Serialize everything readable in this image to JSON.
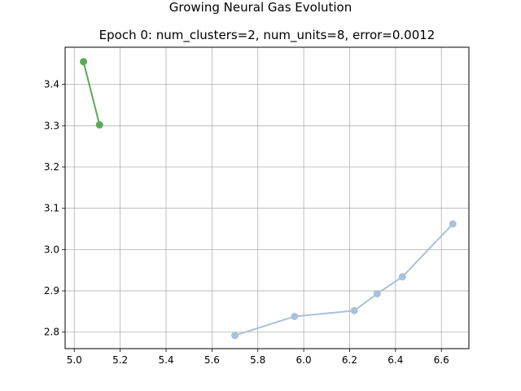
{
  "window": {
    "suptitle": "Growing Neural Gas Evolution",
    "title": "Epoch 0: num_clusters=2, num_units=8, error=0.0012"
  },
  "chart_data": {
    "type": "line",
    "title": "Epoch 0: num_clusters=2, num_units=8, error=0.0012",
    "suptitle": "Growing Neural Gas Evolution",
    "xlabel": "",
    "ylabel": "",
    "xlim": [
      4.96,
      6.72
    ],
    "ylim": [
      2.76,
      3.49
    ],
    "xticks": [
      5.0,
      5.2,
      5.4,
      5.6,
      5.8,
      6.0,
      6.2,
      6.4,
      6.6
    ],
    "xtick_labels": [
      "5.0",
      "5.2",
      "5.4",
      "5.6",
      "5.8",
      "6.0",
      "6.2",
      "6.4",
      "6.6"
    ],
    "yticks": [
      2.8,
      2.9,
      3.0,
      3.1,
      3.2,
      3.3,
      3.4
    ],
    "ytick_labels": [
      "2.8",
      "2.9",
      "3.0",
      "3.1",
      "3.2",
      "3.3",
      "3.4"
    ],
    "grid": true,
    "series": [
      {
        "color": "#5aaa55",
        "x": [
          5.04,
          5.11
        ],
        "y": [
          3.455,
          3.302
        ]
      },
      {
        "color": "#a9c1d9",
        "x": [
          5.7,
          5.96,
          6.22,
          6.32,
          6.43,
          6.65
        ],
        "y": [
          2.792,
          2.838,
          2.852,
          2.893,
          2.934,
          3.062
        ]
      }
    ]
  }
}
